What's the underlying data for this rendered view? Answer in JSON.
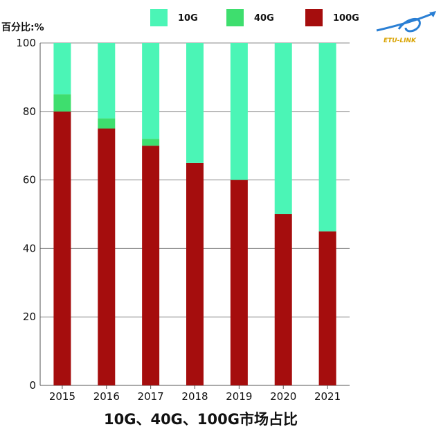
{
  "chart_data": {
    "type": "bar",
    "stacked": true,
    "title": "10G、40G、100G市场占比",
    "ylabel": "百分比:%",
    "xlabel": "",
    "categories": [
      "2015",
      "2016",
      "2017",
      "2018",
      "2019",
      "2020",
      "2021"
    ],
    "series": [
      {
        "name": "100G",
        "color": "#a50d0d",
        "values": [
          80,
          75,
          70,
          65,
          60,
          50,
          45
        ]
      },
      {
        "name": "40G",
        "color": "#3ede6e",
        "values": [
          5,
          3,
          2,
          0,
          0,
          0,
          0
        ]
      },
      {
        "name": "10G",
        "color": "#4bf5b6",
        "values": [
          15,
          22,
          28,
          35,
          40,
          50,
          55
        ]
      }
    ],
    "legend_order": [
      "10G",
      "40G",
      "100G"
    ],
    "legend_position": "top",
    "ylim": [
      0,
      100
    ],
    "yticks": [
      0,
      20,
      40,
      60,
      80,
      100
    ],
    "grid": true
  },
  "logo": {
    "text": "ETU-LINK",
    "accent": "#2a7fd4",
    "text_color": "#d9a300"
  }
}
